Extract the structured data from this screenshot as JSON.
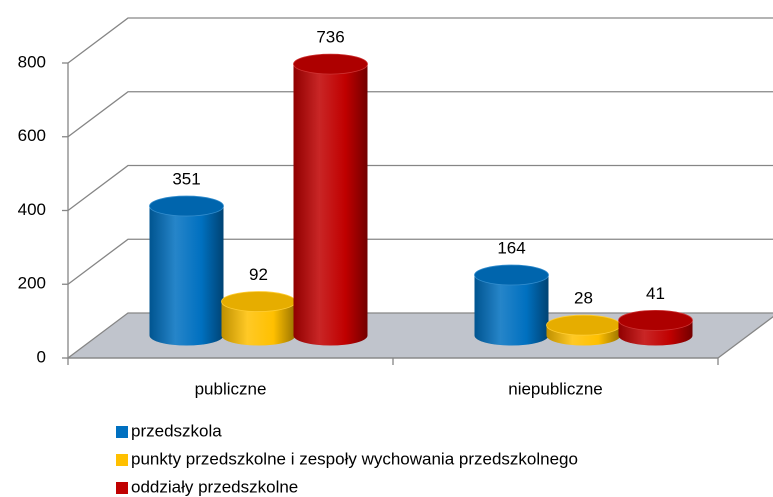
{
  "chart_data": {
    "type": "bar3d",
    "categories": [
      "publiczne",
      "niepubliczne"
    ],
    "series": [
      {
        "name": "przedszkola",
        "color": "#0070c0",
        "values": [
          351,
          164
        ]
      },
      {
        "name": "punkty przedszkolne i zespoły wychowania przedszkolnego",
        "color": "#ffc000",
        "values": [
          92,
          28
        ]
      },
      {
        "name": "oddziały przedszkolne",
        "color": "#c00000",
        "values": [
          736,
          41
        ]
      }
    ],
    "ylim": [
      0,
      800
    ],
    "yticks": [
      0,
      200,
      400,
      600,
      800
    ],
    "grid": true,
    "legend": "bottom"
  }
}
